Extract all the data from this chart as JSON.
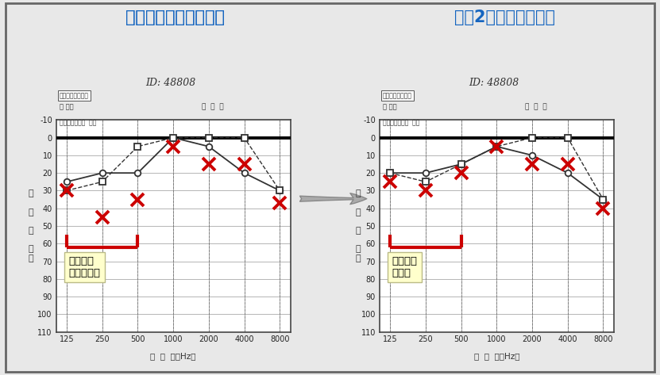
{
  "title_left": "発症後翌日の検査結果",
  "title_right": "投薬2日後の検査結果",
  "title_color": "#1565C0",
  "title_fontsize": 15,
  "bg_color": "#e8e8e8",
  "chart_bg": "#ffffff",
  "freqs": [
    125,
    250,
    500,
    1000,
    2000,
    4000,
    8000
  ],
  "freq_labels": [
    "125",
    "250",
    "500",
    "1000",
    "2000",
    "4000",
    "8000"
  ],
  "ylim": [
    -10,
    110
  ],
  "yticks": [
    -10,
    0,
    10,
    20,
    30,
    40,
    50,
    60,
    70,
    80,
    90,
    100,
    110
  ],
  "left_circle_line": [
    25,
    20,
    20,
    0,
    5,
    20,
    30
  ],
  "left_square_line": [
    30,
    25,
    5,
    0,
    0,
    0,
    30
  ],
  "left_cross": [
    30,
    45,
    35,
    5,
    15,
    15,
    37
  ],
  "right_circle_line": [
    20,
    20,
    15,
    5,
    10,
    20,
    35
  ],
  "right_square_line": [
    20,
    25,
    15,
    5,
    0,
    0,
    35
  ],
  "right_cross": [
    25,
    30,
    20,
    5,
    15,
    15,
    40
  ],
  "annotation_left": "低い音が\n聞こえない",
  "annotation_right": "この辺り\nが改善",
  "bracket_color": "#cc0000",
  "annotation_bg": "#ffffcc",
  "header_label": "標準純音聴力検査",
  "id_text": "ID: 48808",
  "xlabel": "周  波  数（Hz）",
  "yaxis_label": "聴\n\nカ\n\nレ\n\nベ\nル",
  "header_subtext": "骨導検耳：乳突  開放",
  "name_label": "氏 名：",
  "gender_text": "才  ㊚  女"
}
